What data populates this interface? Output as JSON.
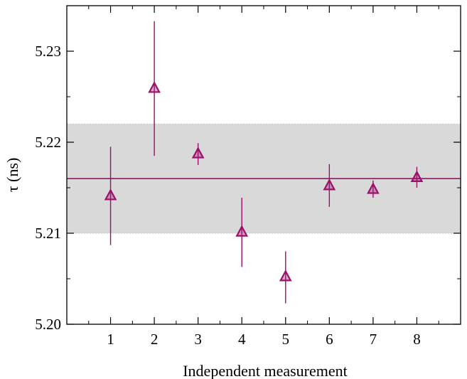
{
  "chart_data": {
    "type": "scatter",
    "title": "",
    "xlabel": "Independent measurement",
    "ylabel": "τ (ns)",
    "xlim": [
      0,
      9
    ],
    "ylim": [
      5.2,
      5.235
    ],
    "x_ticks": [
      "1",
      "2",
      "3",
      "4",
      "5",
      "6",
      "7",
      "8"
    ],
    "y_ticks": [
      "5.20",
      "5.21",
      "5.22",
      "5.23"
    ],
    "grid": false,
    "legend": "none",
    "series": [
      {
        "marker": "triangle",
        "color": "#9c0f6a",
        "points": [
          {
            "x": 1,
            "y": 5.2141,
            "err_low": 5.2087,
            "err_high": 5.2195
          },
          {
            "x": 2,
            "y": 5.2259,
            "err_low": 5.2185,
            "err_high": 5.2333
          },
          {
            "x": 3,
            "y": 5.2187,
            "err_low": 5.2175,
            "err_high": 5.2199
          },
          {
            "x": 4,
            "y": 5.2101,
            "err_low": 5.2063,
            "err_high": 5.2139
          },
          {
            "x": 5,
            "y": 5.2052,
            "err_low": 5.2023,
            "err_high": 5.208
          },
          {
            "x": 6,
            "y": 5.2152,
            "err_low": 5.2129,
            "err_high": 5.2176
          },
          {
            "x": 7,
            "y": 5.2148,
            "err_low": 5.2139,
            "err_high": 5.2158
          },
          {
            "x": 8,
            "y": 5.2161,
            "err_low": 5.215,
            "err_high": 5.2173
          }
        ]
      }
    ],
    "mean_line": {
      "y": 5.216,
      "color": "#9c0f6a"
    },
    "uncertainty_band": {
      "low": 5.21,
      "high": 5.222,
      "color": "#d9d9d9"
    }
  }
}
